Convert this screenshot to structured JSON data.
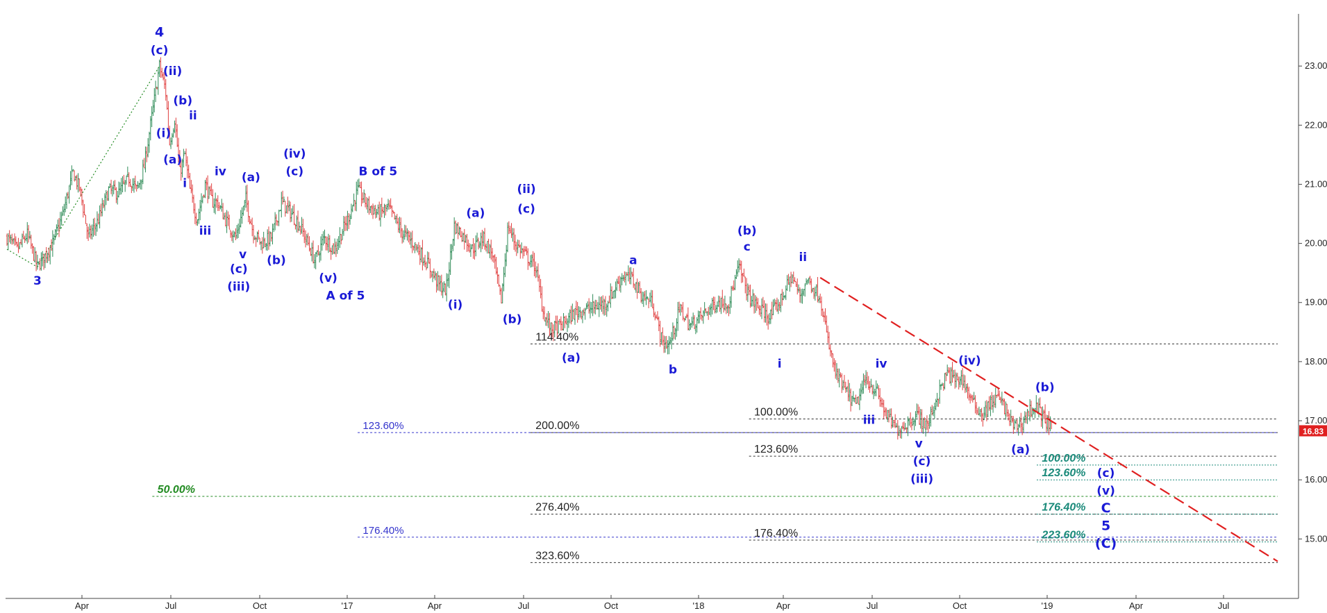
{
  "chart_data": {
    "type": "candlestick",
    "title": "",
    "xlabel": "",
    "ylabel": "",
    "ylim": [
      13.9,
      24.0
    ],
    "y_ticks": [
      "23.00",
      "22.00",
      "21.00",
      "20.00",
      "19.00",
      "18.00",
      "17.00",
      "16.00",
      "15.00"
    ],
    "x_ticks": [
      "Apr",
      "Jul",
      "Oct",
      "'17",
      "Apr",
      "Jul",
      "Oct",
      "'18",
      "Apr",
      "Jul",
      "Oct",
      "'19",
      "Apr",
      "Jul"
    ],
    "last_price": "16.83",
    "colors": {
      "up": "#2e8b57",
      "down": "#e04040",
      "wave_label": "#1a1ad6",
      "trendline": "#e02020",
      "last_price_badge": "#e02020"
    },
    "price_path": [
      {
        "t": 0,
        "v": 20.1
      },
      {
        "t": 10,
        "v": 19.9
      },
      {
        "t": 20,
        "v": 20.15
      },
      {
        "t": 30,
        "v": 19.6
      },
      {
        "t": 45,
        "v": 20.0
      },
      {
        "t": 55,
        "v": 20.5
      },
      {
        "t": 65,
        "v": 21.2
      },
      {
        "t": 72,
        "v": 20.9
      },
      {
        "t": 80,
        "v": 20.1
      },
      {
        "t": 90,
        "v": 20.4
      },
      {
        "t": 100,
        "v": 20.9
      },
      {
        "t": 110,
        "v": 20.85
      },
      {
        "t": 120,
        "v": 21.1
      },
      {
        "t": 128,
        "v": 20.9
      },
      {
        "t": 135,
        "v": 21.3
      },
      {
        "t": 143,
        "v": 22.2
      },
      {
        "t": 150,
        "v": 23.0
      },
      {
        "t": 156,
        "v": 22.6
      },
      {
        "t": 160,
        "v": 21.7
      },
      {
        "t": 165,
        "v": 22.1
      },
      {
        "t": 170,
        "v": 21.2
      },
      {
        "t": 175,
        "v": 21.5
      },
      {
        "t": 180,
        "v": 20.9
      },
      {
        "t": 187,
        "v": 20.4
      },
      {
        "t": 195,
        "v": 21.0
      },
      {
        "t": 202,
        "v": 20.7
      },
      {
        "t": 207,
        "v": 20.7
      },
      {
        "t": 215,
        "v": 20.4
      },
      {
        "t": 225,
        "v": 20.1
      },
      {
        "t": 235,
        "v": 20.75
      },
      {
        "t": 242,
        "v": 20.2
      },
      {
        "t": 250,
        "v": 20.0
      },
      {
        "t": 260,
        "v": 20.1
      },
      {
        "t": 270,
        "v": 20.7
      },
      {
        "t": 280,
        "v": 20.5
      },
      {
        "t": 288,
        "v": 20.3
      },
      {
        "t": 296,
        "v": 20.0
      },
      {
        "t": 303,
        "v": 19.7
      },
      {
        "t": 312,
        "v": 20.1
      },
      {
        "t": 322,
        "v": 19.9
      },
      {
        "t": 335,
        "v": 20.4
      },
      {
        "t": 345,
        "v": 20.9
      },
      {
        "t": 355,
        "v": 20.65
      },
      {
        "t": 365,
        "v": 20.5
      },
      {
        "t": 375,
        "v": 20.6
      },
      {
        "t": 388,
        "v": 20.2
      },
      {
        "t": 400,
        "v": 20.0
      },
      {
        "t": 412,
        "v": 19.7
      },
      {
        "t": 425,
        "v": 19.3
      },
      {
        "t": 432,
        "v": 19.2
      },
      {
        "t": 440,
        "v": 20.3
      },
      {
        "t": 450,
        "v": 20.1
      },
      {
        "t": 458,
        "v": 19.9
      },
      {
        "t": 468,
        "v": 20.1
      },
      {
        "t": 478,
        "v": 19.8
      },
      {
        "t": 486,
        "v": 19.0
      },
      {
        "t": 493,
        "v": 20.3
      },
      {
        "t": 500,
        "v": 20.0
      },
      {
        "t": 510,
        "v": 19.8
      },
      {
        "t": 520,
        "v": 19.6
      },
      {
        "t": 528,
        "v": 18.8
      },
      {
        "t": 535,
        "v": 18.55
      },
      {
        "t": 545,
        "v": 18.6
      },
      {
        "t": 560,
        "v": 18.85
      },
      {
        "t": 575,
        "v": 18.9
      },
      {
        "t": 590,
        "v": 19.0
      },
      {
        "t": 605,
        "v": 19.45
      },
      {
        "t": 615,
        "v": 19.4
      },
      {
        "t": 625,
        "v": 19.1
      },
      {
        "t": 635,
        "v": 19.0
      },
      {
        "t": 645,
        "v": 18.3
      },
      {
        "t": 652,
        "v": 18.3
      },
      {
        "t": 662,
        "v": 18.9
      },
      {
        "t": 672,
        "v": 18.6
      },
      {
        "t": 685,
        "v": 18.8
      },
      {
        "t": 698,
        "v": 19.0
      },
      {
        "t": 710,
        "v": 19.0
      },
      {
        "t": 720,
        "v": 19.6
      },
      {
        "t": 730,
        "v": 19.1
      },
      {
        "t": 740,
        "v": 18.9
      },
      {
        "t": 750,
        "v": 18.75
      },
      {
        "t": 760,
        "v": 19.0
      },
      {
        "t": 772,
        "v": 19.45
      },
      {
        "t": 780,
        "v": 19.1
      },
      {
        "t": 787,
        "v": 19.4
      },
      {
        "t": 793,
        "v": 19.25
      },
      {
        "t": 800,
        "v": 19.1
      },
      {
        "t": 808,
        "v": 18.3
      },
      {
        "t": 815,
        "v": 17.8
      },
      {
        "t": 825,
        "v": 17.5
      },
      {
        "t": 835,
        "v": 17.25
      },
      {
        "t": 845,
        "v": 17.7
      },
      {
        "t": 855,
        "v": 17.5
      },
      {
        "t": 865,
        "v": 17.1
      },
      {
        "t": 875,
        "v": 16.85
      },
      {
        "t": 885,
        "v": 16.95
      },
      {
        "t": 895,
        "v": 17.1
      },
      {
        "t": 905,
        "v": 16.9
      },
      {
        "t": 915,
        "v": 17.4
      },
      {
        "t": 925,
        "v": 17.8
      },
      {
        "t": 932,
        "v": 17.7
      },
      {
        "t": 940,
        "v": 17.7
      },
      {
        "t": 950,
        "v": 17.3
      },
      {
        "t": 960,
        "v": 17.1
      },
      {
        "t": 968,
        "v": 17.3
      },
      {
        "t": 975,
        "v": 17.4
      },
      {
        "t": 982,
        "v": 17.2
      },
      {
        "t": 990,
        "v": 16.9
      },
      {
        "t": 998,
        "v": 16.95
      },
      {
        "t": 1005,
        "v": 17.15
      },
      {
        "t": 1012,
        "v": 17.25
      },
      {
        "t": 1020,
        "v": 17.05
      },
      {
        "t": 1028,
        "v": 16.85
      }
    ],
    "wave_labels": [
      {
        "text": "3",
        "t": 30,
        "v": 19.3,
        "size": 17
      },
      {
        "text": "4",
        "t": 150,
        "v": 23.5,
        "size": 19
      },
      {
        "text": "(c)",
        "t": 150,
        "v": 23.2,
        "size": 17
      },
      {
        "text": "(ii)",
        "t": 163,
        "v": 22.85,
        "size": 17
      },
      {
        "text": "(b)",
        "t": 173,
        "v": 22.35,
        "size": 17
      },
      {
        "text": "ii",
        "t": 183,
        "v": 22.1,
        "size": 17
      },
      {
        "text": "(i)",
        "t": 154,
        "v": 21.8,
        "size": 17
      },
      {
        "text": "(a)",
        "t": 163,
        "v": 21.35,
        "size": 17
      },
      {
        "text": "i",
        "t": 175,
        "v": 20.95,
        "size": 17
      },
      {
        "text": "iii",
        "t": 195,
        "v": 20.15,
        "size": 17
      },
      {
        "text": "iv",
        "t": 210,
        "v": 21.15,
        "size": 17
      },
      {
        "text": "(a)",
        "t": 240,
        "v": 21.05,
        "size": 17
      },
      {
        "text": "v",
        "t": 232,
        "v": 19.75,
        "size": 17
      },
      {
        "text": "(c)",
        "t": 228,
        "v": 19.5,
        "size": 17
      },
      {
        "text": "(iii)",
        "t": 228,
        "v": 19.2,
        "size": 17
      },
      {
        "text": "(b)",
        "t": 265,
        "v": 19.65,
        "size": 17
      },
      {
        "text": "(iv)",
        "t": 283,
        "v": 21.45,
        "size": 17
      },
      {
        "text": "(c)",
        "t": 283,
        "v": 21.15,
        "size": 17
      },
      {
        "text": "(v)",
        "t": 316,
        "v": 19.35,
        "size": 17
      },
      {
        "text": "A of 5",
        "t": 333,
        "v": 19.05,
        "size": 17
      },
      {
        "text": "B of 5",
        "t": 365,
        "v": 21.15,
        "size": 17
      },
      {
        "text": "(a)",
        "t": 461,
        "v": 20.45,
        "size": 17
      },
      {
        "text": "(i)",
        "t": 441,
        "v": 18.9,
        "size": 17
      },
      {
        "text": "(ii)",
        "t": 511,
        "v": 20.85,
        "size": 17
      },
      {
        "text": "(c)",
        "t": 511,
        "v": 20.52,
        "size": 17
      },
      {
        "text": "(b)",
        "t": 497,
        "v": 18.65,
        "size": 17
      },
      {
        "text": "(a)",
        "t": 555,
        "v": 18.0,
        "size": 17
      },
      {
        "text": "a",
        "t": 616,
        "v": 19.65,
        "size": 17
      },
      {
        "text": "b",
        "t": 655,
        "v": 17.8,
        "size": 17
      },
      {
        "text": "(b)",
        "t": 728,
        "v": 20.15,
        "size": 17
      },
      {
        "text": "c",
        "t": 728,
        "v": 19.88,
        "size": 17
      },
      {
        "text": "ii",
        "t": 783,
        "v": 19.7,
        "size": 17
      },
      {
        "text": "i",
        "t": 760,
        "v": 17.9,
        "size": 17
      },
      {
        "text": "iv",
        "t": 860,
        "v": 17.9,
        "size": 17
      },
      {
        "text": "iii",
        "t": 848,
        "v": 16.95,
        "size": 17
      },
      {
        "text": "v",
        "t": 897,
        "v": 16.55,
        "size": 17
      },
      {
        "text": "(c)",
        "t": 900,
        "v": 16.25,
        "size": 17
      },
      {
        "text": "(iii)",
        "t": 900,
        "v": 15.95,
        "size": 17
      },
      {
        "text": "(iv)",
        "t": 947,
        "v": 17.95,
        "size": 17
      },
      {
        "text": "(b)",
        "t": 1021,
        "v": 17.5,
        "size": 17
      },
      {
        "text": "(a)",
        "t": 997,
        "v": 16.45,
        "size": 17
      },
      {
        "text": "(c)",
        "t": 1081,
        "v": 16.05,
        "size": 17
      },
      {
        "text": "(v)",
        "t": 1081,
        "v": 15.75,
        "size": 17
      },
      {
        "text": "C",
        "t": 1081,
        "v": 15.45,
        "size": 19
      },
      {
        "text": "5",
        "t": 1081,
        "v": 15.15,
        "size": 19
      },
      {
        "text": "(C)",
        "t": 1081,
        "v": 14.85,
        "size": 19
      }
    ],
    "fib_levels": [
      {
        "label": "114.40%",
        "value": 18.3,
        "t_start": 515,
        "t_end": 1250,
        "style": "black",
        "label_t": 520
      },
      {
        "label": "100.00%",
        "value": 17.03,
        "t_start": 730,
        "t_end": 1250,
        "style": "black",
        "label_t": 735
      },
      {
        "label": "200.00%",
        "value": 16.8,
        "t_start": 515,
        "t_end": 1250,
        "style": "black",
        "label_t": 520
      },
      {
        "label": "123.60%",
        "value": 16.8,
        "t_start": 345,
        "t_end": 1250,
        "style": "blue",
        "label_t": 350
      },
      {
        "label": "123.60%",
        "value": 16.4,
        "t_start": 730,
        "t_end": 1250,
        "style": "black",
        "label_t": 735
      },
      {
        "label": "100.00%",
        "value": 16.25,
        "t_start": 1013,
        "t_end": 1250,
        "style": "teal",
        "label_t": 1018
      },
      {
        "label": "123.60%",
        "value": 16.0,
        "t_start": 1013,
        "t_end": 1250,
        "style": "teal",
        "label_t": 1018
      },
      {
        "label": "50.00%",
        "value": 15.72,
        "t_start": 143,
        "t_end": 1250,
        "style": "green",
        "label_t": 148
      },
      {
        "label": "276.40%",
        "value": 15.42,
        "t_start": 515,
        "t_end": 1250,
        "style": "black",
        "label_t": 520
      },
      {
        "label": "176.40%",
        "value": 15.42,
        "t_start": 1013,
        "t_end": 1250,
        "style": "teal",
        "label_t": 1018
      },
      {
        "label": "176.40%",
        "value": 15.03,
        "t_start": 345,
        "t_end": 1250,
        "style": "blue",
        "label_t": 350
      },
      {
        "label": "176.40%",
        "value": 14.98,
        "t_start": 730,
        "t_end": 1250,
        "style": "black",
        "label_t": 735
      },
      {
        "label": "223.60%",
        "value": 14.95,
        "t_start": 1013,
        "t_end": 1250,
        "style": "teal",
        "label_t": 1018
      },
      {
        "label": "323.60%",
        "value": 14.6,
        "t_start": 515,
        "t_end": 1250,
        "style": "black",
        "label_t": 520
      }
    ],
    "trendline": {
      "t1": 800,
      "v1": 19.42,
      "t2": 1250,
      "v2": 14.62
    },
    "wave_connector": {
      "t1": 30,
      "v1": 19.6,
      "t2": 150,
      "v2": 23.0
    }
  }
}
